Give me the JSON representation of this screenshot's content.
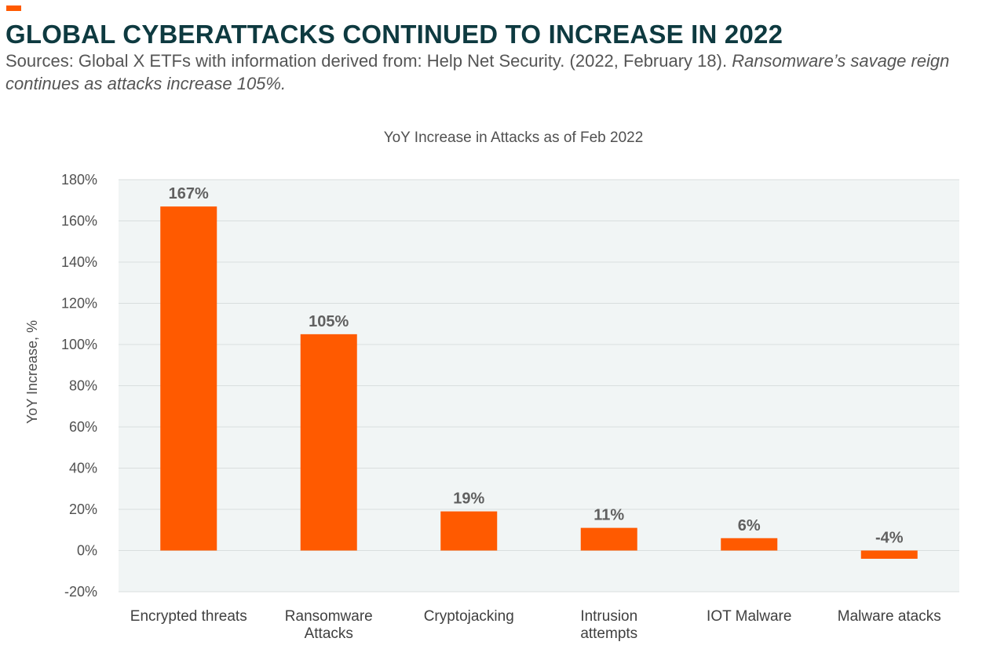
{
  "header": {
    "title": "GLOBAL CYBERATTACKS CONTINUED TO INCREASE IN 2022",
    "source_plain": "Sources: Global X ETFs with information derived from: Help Net Security. (2022, February 18).",
    "source_italic": "Ransomware’s savage reign continues as attacks increase 105%."
  },
  "colors": {
    "accent": "#FF5A00",
    "title": "#0E3A40",
    "plot_background": "#F1F5F5",
    "gridline": "#D9DEDE",
    "bar": "#FF5A00"
  },
  "chart_data": {
    "type": "bar",
    "title": "YoY Increase in Attacks as of Feb 2022",
    "xlabel": "",
    "ylabel": "YoY Increase, %",
    "categories": [
      [
        "Encrypted threats"
      ],
      [
        "Ransomware",
        "Attacks"
      ],
      [
        "Cryptojacking"
      ],
      [
        "Intrusion",
        "attempts"
      ],
      [
        "IOT Malware"
      ],
      [
        "Malware atacks"
      ]
    ],
    "values": [
      167,
      105,
      19,
      11,
      6,
      -4
    ],
    "data_labels": [
      "167%",
      "105%",
      "19%",
      "11%",
      "6%",
      "-4%"
    ],
    "ylim": [
      -20,
      180
    ],
    "yticks": [
      -20,
      0,
      20,
      40,
      60,
      80,
      100,
      120,
      140,
      160,
      180
    ],
    "ytick_labels": [
      "-20%",
      "0%",
      "20%",
      "40%",
      "60%",
      "80%",
      "100%",
      "120%",
      "140%",
      "160%",
      "180%"
    ],
    "grid": true,
    "legend": "none"
  }
}
